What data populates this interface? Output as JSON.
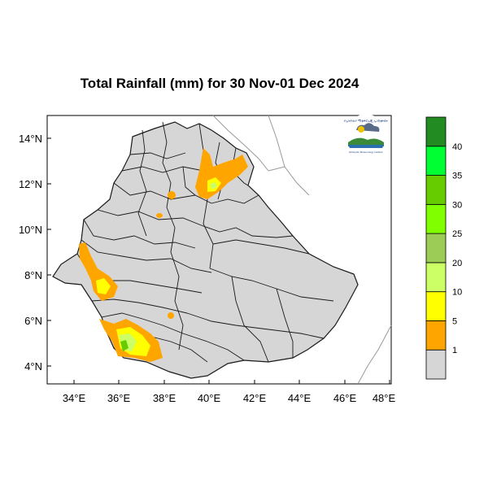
{
  "title": "Total Rainfall (mm) for 30 Nov-01 Dec 2024",
  "map": {
    "lat_labels": [
      "14°N",
      "12°N",
      "10°N",
      "8°N",
      "6°N",
      "4°N"
    ],
    "lon_labels": [
      "34°E",
      "36°E",
      "38°E",
      "40°E",
      "42°E",
      "44°E",
      "46°E",
      "48°E"
    ],
    "background_color": "#d6d6d6",
    "boundary_color": "#1a1a1a"
  },
  "legend": {
    "labels": [
      "1",
      "5",
      "10",
      "20",
      "25",
      "30",
      "35",
      "40"
    ],
    "colors": [
      "#d6d6d6",
      "#ffa500",
      "#ffff00",
      "#ccff66",
      "#9ccc55",
      "#7fff00",
      "#66cc00",
      "#00ff33",
      "#228b22"
    ]
  },
  "logo": {
    "text_top": "የኢትዮጵያ ሚቲዎሮሎጂ ኢንስቲትዩት",
    "text_bottom": "Ethiopian Meteorology Institute"
  }
}
